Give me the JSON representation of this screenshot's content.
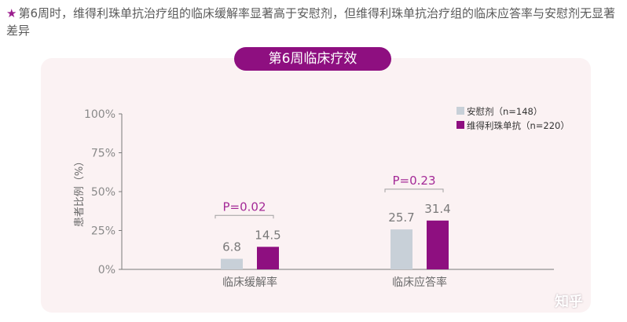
{
  "header": {
    "star": "★",
    "text": "第6周时，维得利珠单抗治疗组的临床缓解率显著高于安慰剂，但维得利珠单抗治疗组的临床应答率与安慰剂无显著差异"
  },
  "watermark": "知乎",
  "colors": {
    "accent": "#8e0f80",
    "placebo": "#c8d0d8",
    "card": "#fbf2f3"
  },
  "chart_data": {
    "type": "bar",
    "title": "第6周临床疗效",
    "ylabel": "患者比例（%）",
    "ylim": [
      0,
      100
    ],
    "yticks": [
      "0%",
      "25%",
      "50%",
      "75%",
      "100%"
    ],
    "ytick_values": [
      0,
      25,
      50,
      75,
      100
    ],
    "categories": [
      "临床缓解率",
      "临床应答率"
    ],
    "series": [
      {
        "name": "安慰剂（n=148）",
        "color": "#c8d0d8",
        "values": [
          6.8,
          25.7
        ],
        "labels": [
          "6.8",
          "25.7"
        ]
      },
      {
        "name": "维得利珠单抗（n=220）",
        "color": "#8e0f80",
        "values": [
          14.5,
          31.4
        ],
        "labels": [
          "14.5",
          "31.4"
        ]
      }
    ],
    "annotations": [
      "P=0.02",
      "P=0.23"
    ],
    "legend_position": "top-right",
    "grid": false
  }
}
